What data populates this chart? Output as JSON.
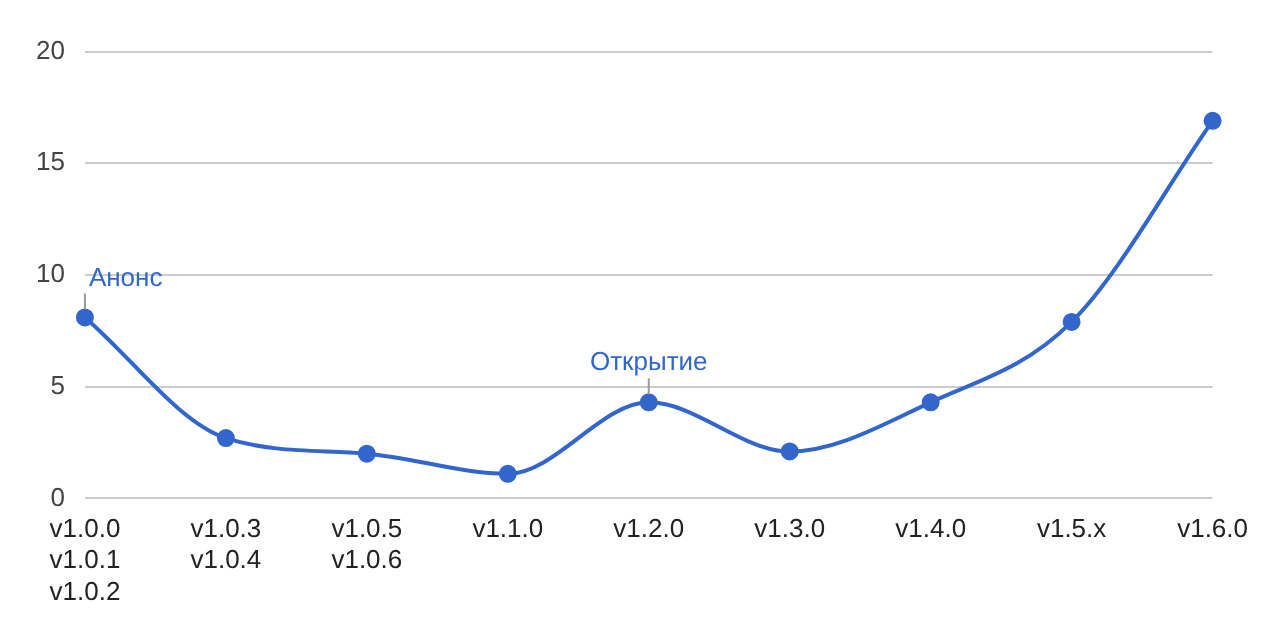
{
  "chart_data": {
    "type": "line",
    "categories": [
      "v1.0.0\nv1.0.1\nv1.0.2",
      "v1.0.3\nv1.0.4",
      "v1.0.5\nv1.0.6",
      "v1.1.0",
      "v1.2.0",
      "v1.3.0",
      "v1.4.0",
      "v1.5.x",
      "v1.6.0"
    ],
    "series": [
      {
        "color": "#3366cc",
        "values": [
          8.1,
          2.7,
          2.0,
          1.1,
          4.3,
          2.1,
          4.3,
          7.9,
          16.9
        ]
      }
    ],
    "ylim": [
      0,
      20
    ],
    "yticks": [
      0,
      5,
      10,
      15,
      20
    ],
    "grid": "y",
    "legend": false,
    "marker": "circle",
    "line_style": "solid",
    "annotations": [
      {
        "text": "Анонс",
        "x": "v1.0.0\nv1.0.1\nv1.0.2",
        "y": 8.1
      },
      {
        "text": "Открытие",
        "x": "v1.2.0",
        "y": 4.3
      }
    ]
  }
}
